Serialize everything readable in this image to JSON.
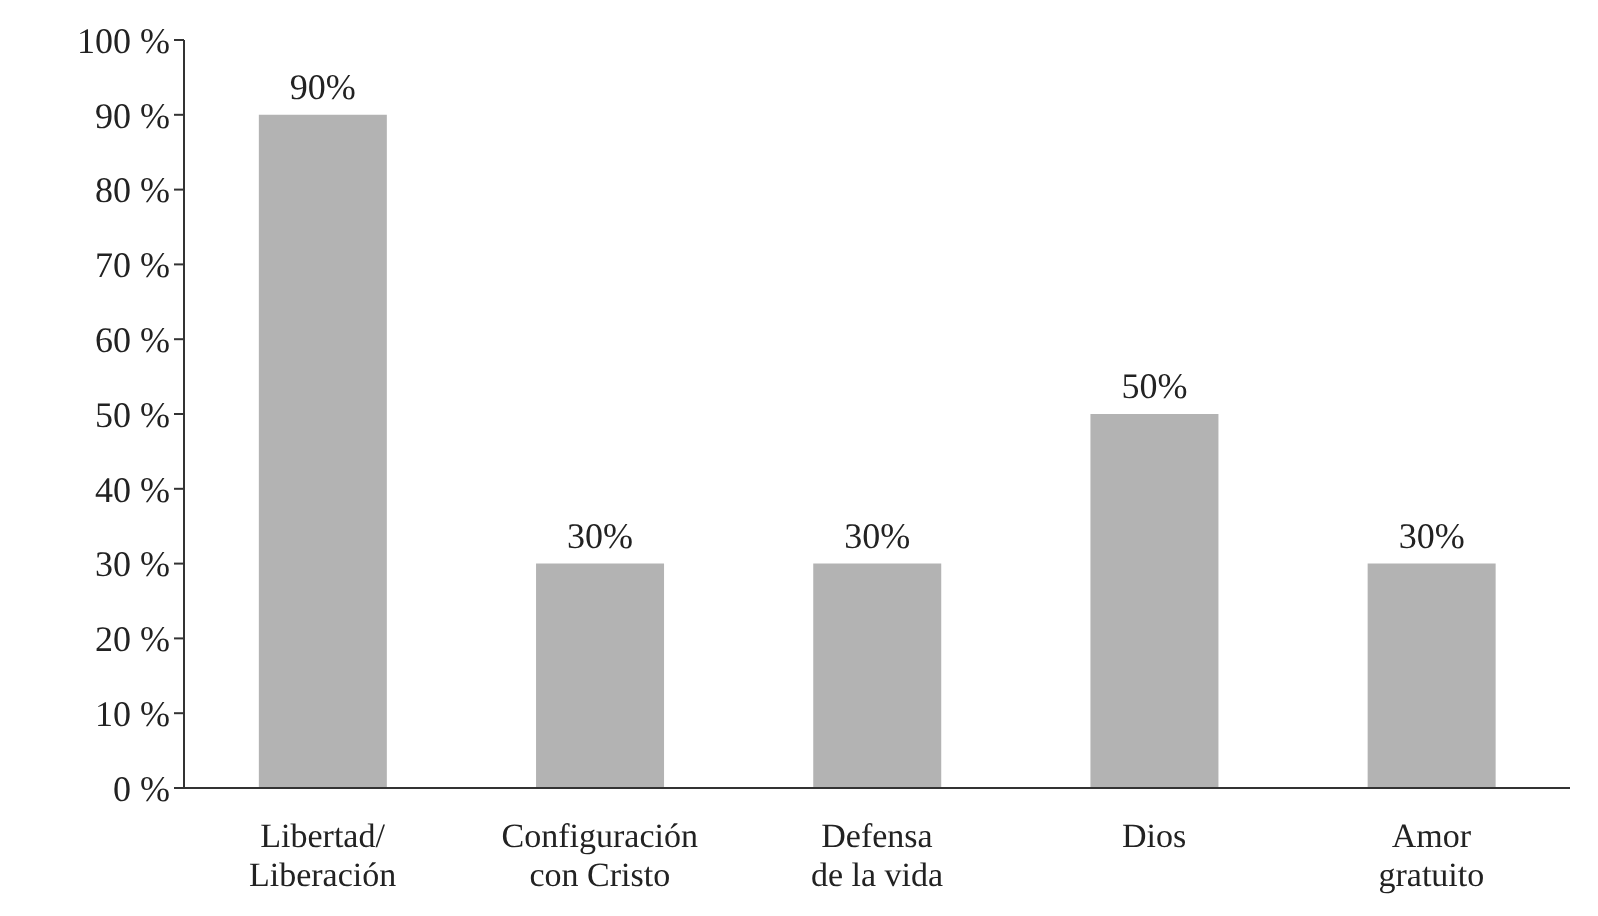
{
  "chart_data": {
    "type": "bar",
    "categories": [
      "Libertad/\nLiberación",
      "Configuración\ncon Cristo",
      "Defensa\nde la vida",
      "Dios",
      "Amor\ngratuito"
    ],
    "values": [
      90,
      30,
      30,
      50,
      30
    ],
    "value_labels": [
      "90%",
      "30%",
      "30%",
      "50%",
      "30%"
    ],
    "color": "#b3b3b3",
    "ylim": [
      0,
      100
    ],
    "yticks": [
      {
        "value": 0,
        "label": "0 %"
      },
      {
        "value": 10,
        "label": "10 %"
      },
      {
        "value": 20,
        "label": "20 %"
      },
      {
        "value": 30,
        "label": "30 %"
      },
      {
        "value": 40,
        "label": "40 %"
      },
      {
        "value": 50,
        "label": "50 %"
      },
      {
        "value": 60,
        "label": "60 %"
      },
      {
        "value": 70,
        "label": "70 %"
      },
      {
        "value": 80,
        "label": "80 %"
      },
      {
        "value": 90,
        "label": "90 %"
      },
      {
        "value": 100,
        "label": "100 %"
      }
    ],
    "grid": false
  }
}
